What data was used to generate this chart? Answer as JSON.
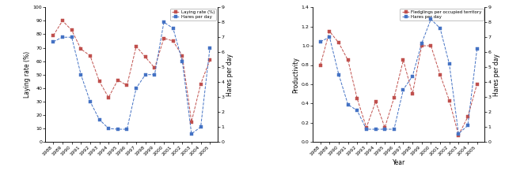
{
  "chart1": {
    "years": [
      1988,
      1989,
      1990,
      1991,
      1992,
      1993,
      1994,
      1995,
      1996,
      1997,
      1998,
      1999,
      2000,
      2001,
      2002,
      2003,
      2004,
      2005
    ],
    "laying_rate": [
      79,
      90,
      83,
      69,
      64,
      45,
      33,
      46,
      42,
      71,
      63,
      55,
      77,
      75,
      64,
      15,
      43,
      61
    ],
    "hares_per_day": [
      6.7,
      7.0,
      7.0,
      4.5,
      2.7,
      1.5,
      0.9,
      0.85,
      0.85,
      3.6,
      4.5,
      4.5,
      8.0,
      7.6,
      5.4,
      0.55,
      1.0,
      6.3
    ],
    "left_label": "Laying rate (%)",
    "right_label": "Hares per day",
    "left_ylim": [
      0,
      100
    ],
    "right_ylim": [
      0,
      9
    ],
    "left_yticks": [
      0,
      10,
      20,
      30,
      40,
      50,
      60,
      70,
      80,
      90,
      100
    ],
    "right_yticks": [
      0,
      1,
      2,
      3,
      4,
      5,
      6,
      7,
      8,
      9
    ],
    "legend1": "Laying rate (%)",
    "legend2": "Hares per day",
    "line1_color": "#c0504d",
    "line2_color": "#4472c4"
  },
  "chart2": {
    "years": [
      1988,
      1989,
      1990,
      1991,
      1992,
      1993,
      1994,
      1995,
      1996,
      1997,
      1998,
      1999,
      2000,
      2001,
      2002,
      2003,
      2004,
      2005
    ],
    "productivity": [
      0.8,
      1.15,
      1.03,
      0.85,
      0.45,
      0.15,
      0.42,
      0.15,
      0.46,
      0.85,
      0.5,
      1.0,
      1.0,
      0.7,
      0.43,
      0.07,
      0.26,
      0.6
    ],
    "hares_per_day": [
      6.7,
      7.0,
      4.5,
      2.5,
      2.1,
      0.85,
      0.85,
      0.85,
      0.85,
      3.5,
      4.4,
      6.6,
      8.2,
      7.6,
      5.2,
      0.55,
      1.1,
      6.2
    ],
    "left_label": "Productivity",
    "right_label": "Hares per day",
    "left_ylim": [
      0.0,
      1.4
    ],
    "right_ylim": [
      0,
      9
    ],
    "left_yticks": [
      0.0,
      0.2,
      0.4,
      0.6,
      0.8,
      1.0,
      1.2,
      1.4
    ],
    "right_yticks": [
      0,
      1,
      2,
      3,
      4,
      5,
      6,
      7,
      8,
      9
    ],
    "legend1": "Fledglings per occupied territory",
    "legend2": "Hares per day",
    "line1_color": "#c0504d",
    "line2_color": "#4472c4",
    "xlabel": "Year"
  },
  "tick_fontsize": 4.5,
  "label_fontsize": 5.5,
  "legend_fontsize": 4.0,
  "marker_size": 2.8,
  "line_width": 0.7,
  "background_color": "#ffffff"
}
